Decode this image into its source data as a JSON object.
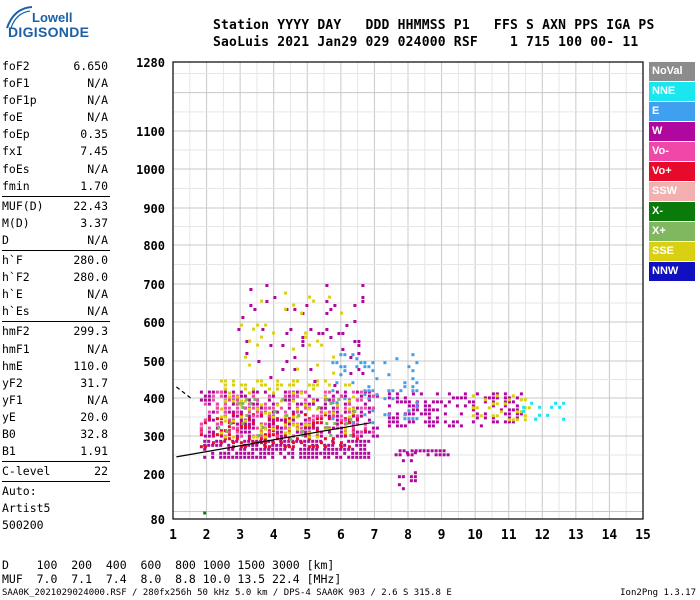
{
  "logo": {
    "line1": "Lowell",
    "line2": "DIGISONDE"
  },
  "header": {
    "line1": "Station YYYY DAY   DDD HHMMSS P1   FFS S AXN PPS IGA PS",
    "line2": "SaoLuis 2021 Jan29 029 024000 RSF    1 715 100 00- 11"
  },
  "params": {
    "group1": [
      {
        "k": "foF2",
        "v": "6.650"
      },
      {
        "k": "foF1",
        "v": "N/A"
      },
      {
        "k": "foF1p",
        "v": "N/A"
      },
      {
        "k": "foE",
        "v": "N/A"
      },
      {
        "k": "foEp",
        "v": "0.35"
      },
      {
        "k": "fxI",
        "v": "7.45"
      },
      {
        "k": "foEs",
        "v": "N/A"
      },
      {
        "k": "fmin",
        "v": "1.70"
      }
    ],
    "group2": [
      {
        "k": "MUF(D)",
        "v": "22.43"
      },
      {
        "k": "M(D)",
        "v": "3.37"
      },
      {
        "k": "D",
        "v": "N/A"
      }
    ],
    "group3": [
      {
        "k": "h`F",
        "v": "280.0"
      },
      {
        "k": "h`F2",
        "v": "280.0"
      },
      {
        "k": "h`E",
        "v": "N/A"
      },
      {
        "k": "h`Es",
        "v": "N/A"
      }
    ],
    "group4": [
      {
        "k": "hmF2",
        "v": "299.3"
      },
      {
        "k": "hmF1",
        "v": "N/A"
      },
      {
        "k": "hmE",
        "v": "110.0"
      },
      {
        "k": "yF2",
        "v": "31.7"
      },
      {
        "k": "yF1",
        "v": "N/A"
      },
      {
        "k": "yE",
        "v": "20.0"
      },
      {
        "k": "B0",
        "v": "32.8"
      },
      {
        "k": "B1",
        "v": "1.91"
      }
    ],
    "group5": [
      {
        "k": "C-level",
        "v": "22"
      }
    ],
    "auto": [
      "Auto:",
      "Artist5",
      "500200"
    ]
  },
  "legend": [
    {
      "label": "NoVal",
      "bg": "#8c8c8c",
      "fg": "#ffffff"
    },
    {
      "label": "NNE",
      "bg": "#19e6ee",
      "fg": "#ffffff"
    },
    {
      "label": "E",
      "bg": "#40a0f0",
      "fg": "#ffffff"
    },
    {
      "label": "W",
      "bg": "#b0089e",
      "fg": "#ffffff"
    },
    {
      "label": "Vo-",
      "bg": "#f048a8",
      "fg": "#ffffff"
    },
    {
      "label": "Vo+",
      "bg": "#e80a2a",
      "fg": "#ffffff"
    },
    {
      "label": "SSW",
      "bg": "#f4b0b0",
      "fg": "#ffffff"
    },
    {
      "label": "X-",
      "bg": "#0a7a0a",
      "fg": "#ffffff"
    },
    {
      "label": "X+",
      "bg": "#80b860",
      "fg": "#ffffff"
    },
    {
      "label": "SSE",
      "bg": "#d8d010",
      "fg": "#ffffff"
    },
    {
      "label": "NNW",
      "bg": "#1010c0",
      "fg": "#ffffff"
    }
  ],
  "dtable": {
    "line1": "D    100  200  400  600  800 1000 1500 3000 [km]",
    "line2": "MUF  7.0  7.1  7.4  8.0  8.8 10.0 13.5 22.4 [MHz]"
  },
  "footer": "SAA0K_2021029024000.RSF / 280fx256h 50 kHz 5.0 km / DPS-4 SAA0K 903 / 2.6 S 315.8 E",
  "version": "Ion2Png 1.3.17",
  "chart_data": {
    "type": "scatter",
    "xlim": [
      1,
      15
    ],
    "x_ticks": [
      1,
      2,
      3,
      4,
      5,
      6,
      7,
      8,
      9,
      10,
      11,
      12,
      13,
      14,
      15
    ],
    "y_ticks": [
      80,
      200,
      300,
      400,
      500,
      600,
      700,
      800,
      900,
      1000,
      1100,
      1280
    ],
    "grid": true,
    "legend_position": "right",
    "clusters": [
      {
        "series": "W",
        "x": [
          1.9,
          6.9
        ],
        "y": [
          245,
          290
        ],
        "density": 0.7
      },
      {
        "series": "W",
        "x": [
          7.6,
          9.2
        ],
        "y": [
          250,
          265
        ],
        "density": 0.8
      },
      {
        "series": "W",
        "x": [
          1.8,
          7.1
        ],
        "y": [
          300,
          420
        ],
        "density": 0.45
      },
      {
        "series": "W",
        "x": [
          7.4,
          11.4
        ],
        "y": [
          320,
          415
        ],
        "density": 0.4
      },
      {
        "series": "Vo+",
        "x": [
          1.8,
          6.8
        ],
        "y": [
          270,
          360
        ],
        "density": 0.3
      },
      {
        "series": "Vo-",
        "x": [
          1.8,
          7.0
        ],
        "y": [
          300,
          420
        ],
        "density": 0.25
      },
      {
        "series": "SSE",
        "x": [
          2.4,
          6.4
        ],
        "y": [
          300,
          450
        ],
        "density": 0.2
      },
      {
        "series": "SSE",
        "x": [
          9.9,
          11.6
        ],
        "y": [
          340,
          410
        ],
        "density": 0.35
      },
      {
        "series": "NNE",
        "x": [
          11.4,
          12.6
        ],
        "y": [
          340,
          390
        ],
        "density": 0.3
      },
      {
        "series": "E",
        "x": [
          5.6,
          8.4
        ],
        "y": [
          330,
          520
        ],
        "density": 0.15
      },
      {
        "series": "W",
        "x": [
          2.8,
          6.7
        ],
        "y": [
          430,
          700
        ],
        "density": 0.07
      },
      {
        "series": "SSE",
        "x": [
          3.0,
          6.0
        ],
        "y": [
          430,
          680
        ],
        "density": 0.04
      },
      {
        "series": "X+",
        "x": [
          2.2,
          6.6
        ],
        "y": [
          290,
          400
        ],
        "density": 0.06
      },
      {
        "series": "W",
        "x": [
          7.7,
          8.2
        ],
        "y": [
          150,
          260
        ],
        "density": 0.25
      },
      {
        "series": "X-",
        "x": [
          1.9,
          2.0
        ],
        "y": [
          98,
          100
        ],
        "density": 0.9
      }
    ],
    "traces": [
      {
        "series": "Vo+",
        "x": [
          1.1,
          6.9
        ],
        "y": [
          245,
          335
        ]
      },
      {
        "series": "Vo-",
        "x": [
          1.1,
          1.6
        ],
        "y": [
          430,
          395
        ]
      }
    ]
  }
}
